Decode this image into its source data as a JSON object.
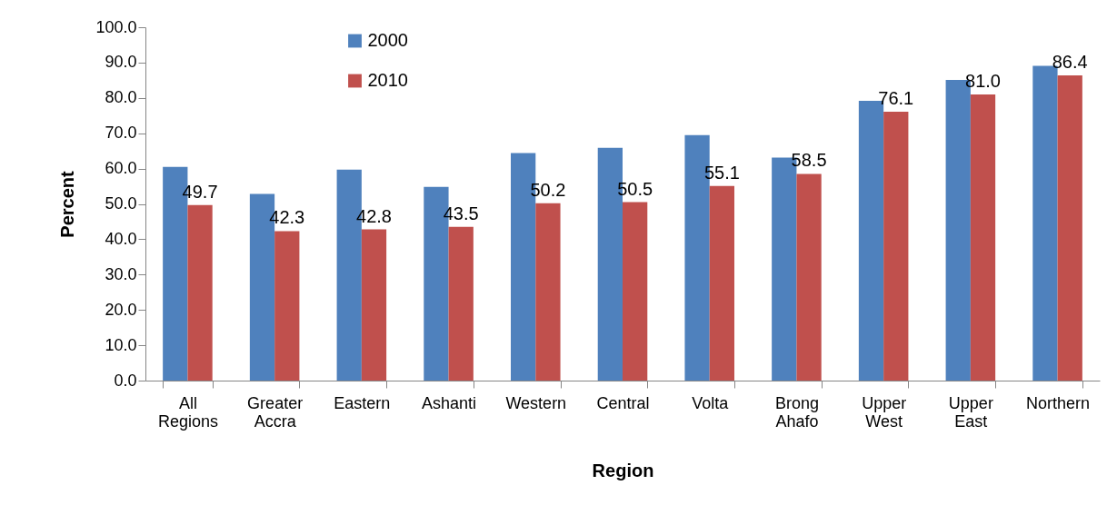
{
  "chart_data": {
    "type": "bar",
    "xlabel": "Region",
    "ylabel": "Percent",
    "categories": [
      "All Regions",
      "Greater Accra",
      "Eastern",
      "Ashanti",
      "Western",
      "Central",
      "Volta",
      "Brong Ahafo",
      "Upper West",
      "Upper East",
      "Northern"
    ],
    "series": [
      {
        "name": "2000",
        "color": "#4f81bd",
        "values": [
          60.5,
          52.8,
          59.7,
          54.8,
          64.4,
          65.9,
          69.5,
          63.1,
          79.2,
          85.1,
          89.1
        ]
      },
      {
        "name": "2010",
        "color": "#c0504d",
        "values": [
          49.7,
          42.3,
          42.8,
          43.5,
          50.2,
          50.5,
          55.1,
          58.5,
          76.1,
          81.0,
          86.4
        ],
        "value_labels": [
          "49.7",
          "42.3",
          "42.8",
          "43.5",
          "50.2",
          "50.5",
          "55.1",
          "58.5",
          "76.1",
          "81.0",
          "86.4"
        ]
      }
    ],
    "ylim": [
      0,
      100
    ],
    "yticks": [
      {
        "value": 0,
        "label": "0.0"
      },
      {
        "value": 10,
        "label": "10.0"
      },
      {
        "value": 20,
        "label": "20.0"
      },
      {
        "value": 30,
        "label": "30.0"
      },
      {
        "value": 40,
        "label": "40.0"
      },
      {
        "value": 50,
        "label": "50.0"
      },
      {
        "value": 60,
        "label": "60.0"
      },
      {
        "value": 70,
        "label": "70.0"
      },
      {
        "value": 80,
        "label": "80.0"
      },
      {
        "value": 90,
        "label": "90.0"
      },
      {
        "value": 100,
        "label": "100.0"
      }
    ],
    "grid": false,
    "legend": "top left"
  }
}
